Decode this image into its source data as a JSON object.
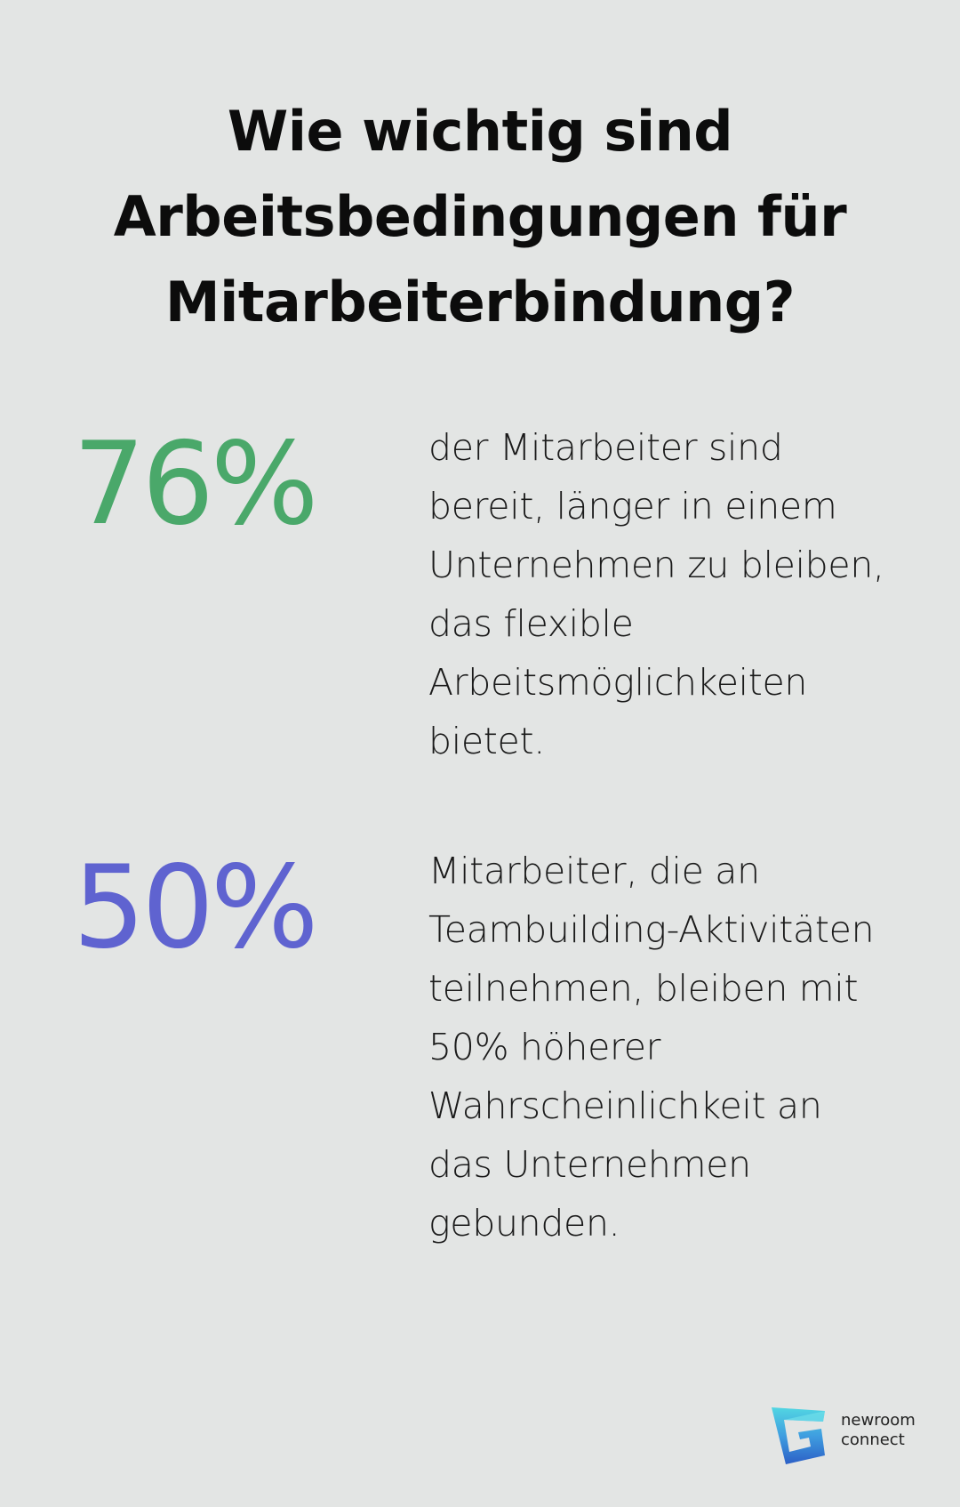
{
  "title": "Wie wichtig sind Arbeitsbedingungen für Mitarbeiterbindung?",
  "stats": [
    {
      "value": "76%",
      "color": "#4aa86a",
      "text": "der Mitarbeiter sind bereit, länger in einem Unternehmen zu bleiben, das flexible Arbeitsmöglichkeiten bietet."
    },
    {
      "value": "50%",
      "color": "#5f63d0",
      "text": "Mitarbeiter, die an Teambuilding-Aktivitäten teilnehmen, bleiben mit 50% höherer Wahrscheinlichkeit an das Unternehmen gebunden."
    }
  ],
  "logo": {
    "line1": "newroom",
    "line2": "connect",
    "icon": "newroom-connect-logo-icon",
    "colors": [
      "#4fd3e0",
      "#3a8fd9",
      "#2b5ec4"
    ]
  }
}
